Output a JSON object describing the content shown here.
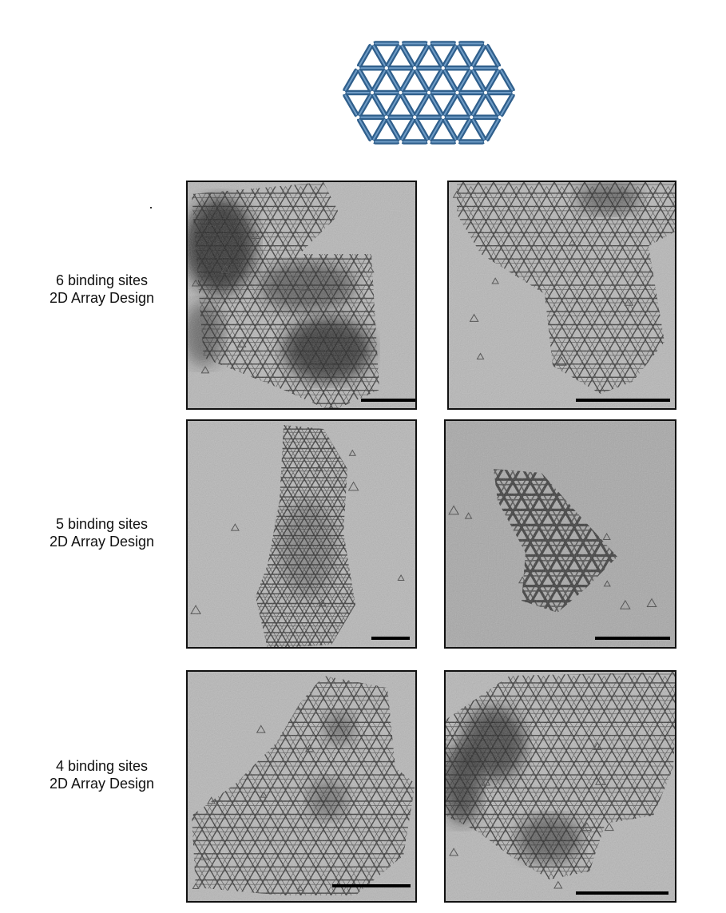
{
  "figure": {
    "design_diagram": {
      "fill_color": "#4a7aa7",
      "edge_color": "#2f5f8c",
      "background": "#ffffff"
    },
    "rows": [
      {
        "label_line1": "6 binding sites",
        "label_line2": "2D Array Design",
        "micrographs": [
          "6-sites-micrograph-left",
          "6-sites-micrograph-right"
        ]
      },
      {
        "label_line1": "5 binding sites",
        "label_line2": "2D Array Design",
        "micrographs": [
          "5-sites-micrograph-left",
          "5-sites-micrograph-right"
        ]
      },
      {
        "label_line1": "4 binding sites",
        "label_line2": "2D Array Design",
        "micrographs": [
          "4-sites-micrograph-left",
          "4-sites-micrograph-right"
        ]
      }
    ],
    "colors": {
      "micrograph_background": "#b7b7b7",
      "lattice_stroke": "#3a3a3a",
      "dark_stain": "#1e1e1e",
      "border": "#111111"
    }
  }
}
